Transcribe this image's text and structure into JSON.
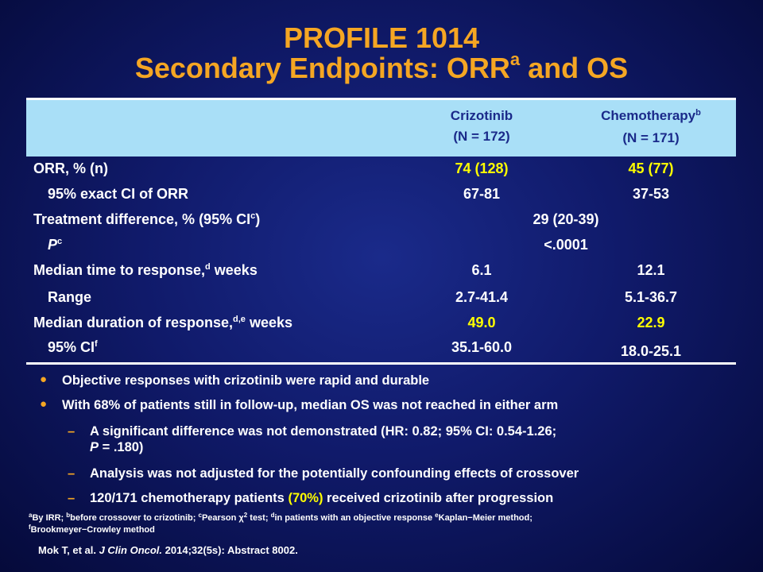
{
  "title": {
    "line1": "PROFILE 1014",
    "line2_main": "Secondary Endpoints: ORR",
    "line2_sup": "a",
    "line2_end": " and OS"
  },
  "table": {
    "col1_name": "Crizotinib",
    "col1_n": "(N = 172)",
    "col2_name": "Chemotherapy",
    "col2_sup": "b",
    "col2_n": "(N = 171)",
    "rows": {
      "orr": {
        "label": "ORR, % (n)",
        "v1": "74 (128)",
        "v2": "45 (77)"
      },
      "ci_orr": {
        "label": "95% exact CI of ORR",
        "v1": "67-81",
        "v2": "37-53"
      },
      "treat_diff": {
        "label_pre": "Treatment difference, % (95% CI",
        "label_sup": "c",
        "label_post": ")",
        "value": "29 (20-39)"
      },
      "p": {
        "label": "P",
        "label_sup": "c",
        "value": "<.0001"
      },
      "median_ttr": {
        "label_pre": "Median time to response,",
        "label_sup": "d",
        "label_post": " weeks",
        "v1": "6.1",
        "v2": "12.1"
      },
      "range": {
        "label": "Range",
        "v1": "2.7-41.4",
        "v2": "5.1-36.7"
      },
      "median_dor": {
        "label_pre": "Median duration of response,",
        "label_sup": "d,e",
        "label_post": " weeks",
        "v1": "49.0",
        "v2": "22.9"
      },
      "ci_dor": {
        "label": "95% CI",
        "label_sup": "f",
        "v1": "35.1-60.0",
        "v2": "18.0-25.1"
      }
    }
  },
  "bullets": {
    "b1": "Objective responses with crizotinib were rapid and durable",
    "b2": "With 68% of patients still in follow-up, median OS was not reached in either arm",
    "s1_line1": "A significant difference was not demonstrated (HR: 0.82; 95% CI: 0.54-1.26;",
    "s1_line2_p": "P",
    "s1_line2_rest": " = .180)",
    "s2": "Analysis was not adjusted for the potentially confounding effects of crossover",
    "s3_pre": "120/171 chemotherapy patients ",
    "s3_hl": "(70%)",
    "s3_post": " received crizotinib after progression"
  },
  "footnotes": {
    "a_sup": "a",
    "a_text": "By IRR; ",
    "b_sup": "b",
    "b_text": "before crossover to crizotinib; ",
    "c_sup": "c",
    "c_text": "Pearson χ",
    "chi_sup": "2",
    "c_text2": " test; ",
    "d_sup": "d",
    "d_text": "in patients with an objective response ",
    "e_sup": "e",
    "e_text": "Kaplan−Meier method;",
    "f_sup": "f",
    "f_text": "Brookmeyer−Crowley method"
  },
  "citation": {
    "pre": "Mok T, et al. ",
    "journal": "J Clin Oncol.",
    "post": " 2014;32(5s): Abstract 8002."
  },
  "colors": {
    "title": "#f5a623",
    "highlight": "#ffff00",
    "header_bg": "#a9dff7",
    "background": "#101a6a"
  }
}
